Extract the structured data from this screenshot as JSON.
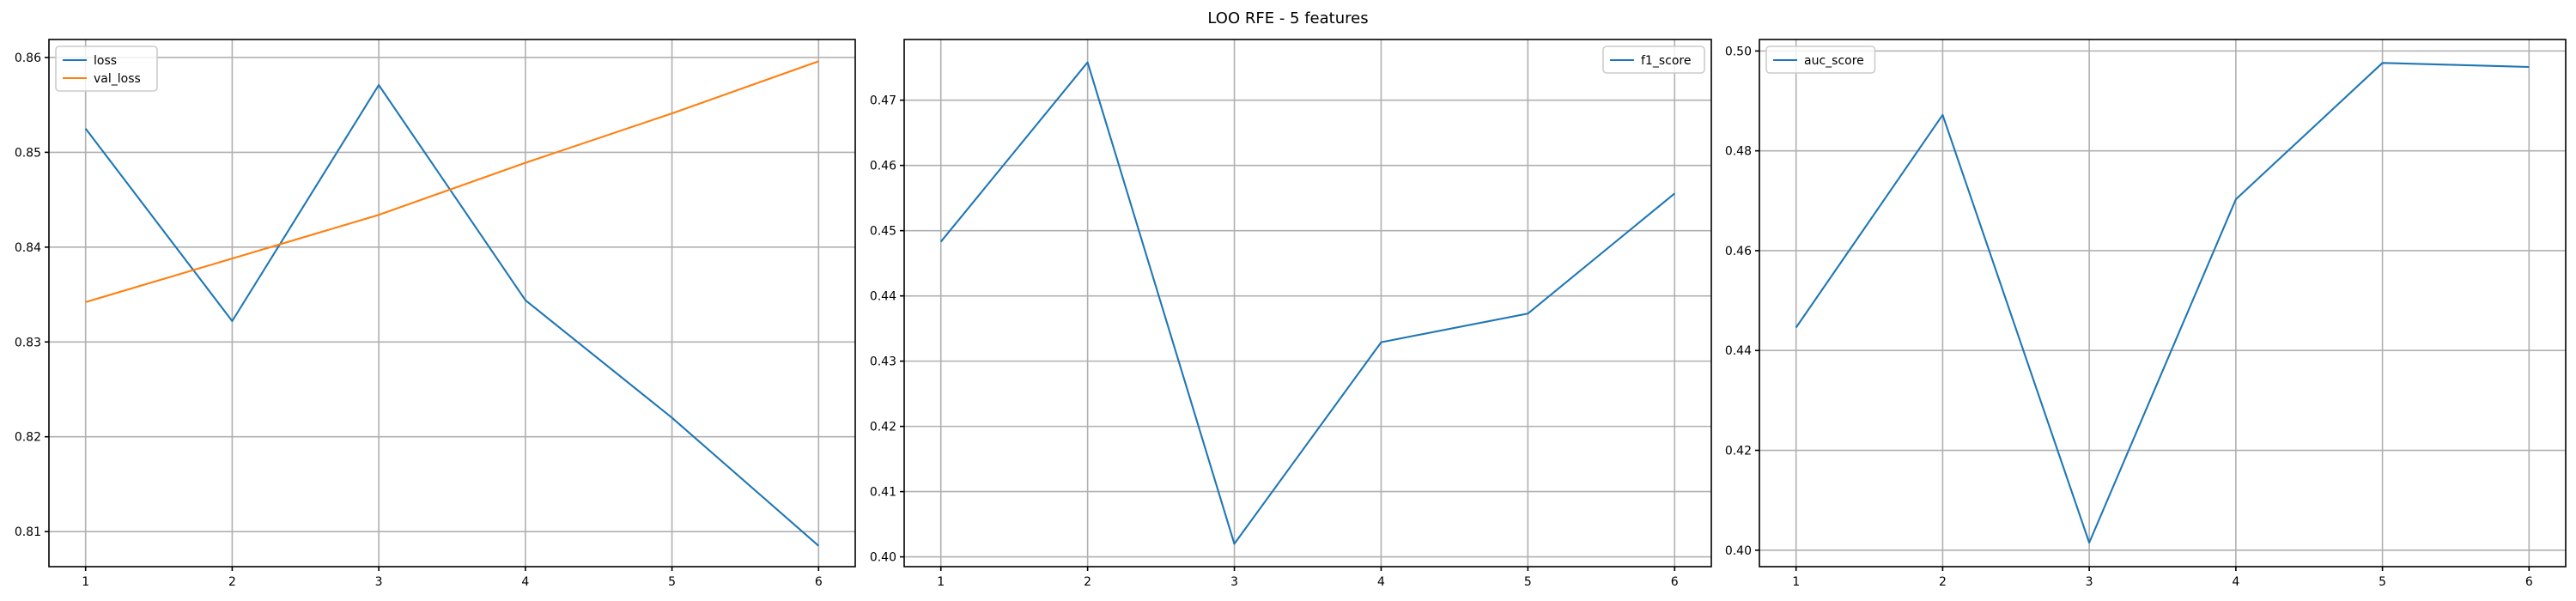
{
  "title": "LOO RFE - 5 features",
  "colors": {
    "series1": "#1f77b4",
    "series2": "#ff7f0e",
    "grid": "#b0b0b0"
  },
  "chart_data": [
    {
      "type": "line",
      "x": [
        1,
        2,
        3,
        4,
        5,
        6
      ],
      "xticks": [
        1,
        2,
        3,
        4,
        5,
        6
      ],
      "xlim": [
        0.75,
        6.25
      ],
      "ylim": [
        0.8063,
        0.8619
      ],
      "yticks": [
        0.81,
        0.82,
        0.83,
        0.84,
        0.85,
        0.86
      ],
      "ytick_labels": [
        "0.81",
        "0.82",
        "0.83",
        "0.84",
        "0.85",
        "0.86"
      ],
      "grid": true,
      "legend": "upper-left",
      "series": [
        {
          "name": "loss",
          "color": "#1f77b4",
          "values": [
            0.8525,
            0.8322,
            0.8571,
            0.8344,
            0.822,
            0.8085
          ]
        },
        {
          "name": "val_loss",
          "color": "#ff7f0e",
          "values": [
            0.8342,
            0.8388,
            0.8434,
            0.8489,
            0.8541,
            0.8596
          ]
        }
      ]
    },
    {
      "type": "line",
      "x": [
        1,
        2,
        3,
        4,
        5,
        6
      ],
      "xticks": [
        1,
        2,
        3,
        4,
        5,
        6
      ],
      "xlim": [
        0.75,
        6.25
      ],
      "ylim": [
        0.3985,
        0.4793
      ],
      "yticks": [
        0.4,
        0.41,
        0.42,
        0.43,
        0.44,
        0.45,
        0.46,
        0.47
      ],
      "ytick_labels": [
        "0.40",
        "0.41",
        "0.42",
        "0.43",
        "0.44",
        "0.45",
        "0.46",
        "0.47"
      ],
      "grid": true,
      "legend": "upper-right",
      "series": [
        {
          "name": "f1_score",
          "color": "#1f77b4",
          "values": [
            0.4483,
            0.4758,
            0.402,
            0.4329,
            0.4373,
            0.4557
          ]
        }
      ]
    },
    {
      "type": "line",
      "x": [
        1,
        2,
        3,
        4,
        5,
        6
      ],
      "xticks": [
        1,
        2,
        3,
        4,
        5,
        6
      ],
      "xlim": [
        0.75,
        6.25
      ],
      "ylim": [
        0.3967,
        0.5023
      ],
      "yticks": [
        0.4,
        0.42,
        0.44,
        0.46,
        0.48,
        0.5
      ],
      "ytick_labels": [
        "0.40",
        "0.42",
        "0.44",
        "0.46",
        "0.48",
        "0.50"
      ],
      "grid": true,
      "legend": "upper-left",
      "series": [
        {
          "name": "auc_score",
          "color": "#1f77b4",
          "values": [
            0.4446,
            0.4872,
            0.4015,
            0.4703,
            0.4976,
            0.4968
          ]
        }
      ]
    }
  ]
}
